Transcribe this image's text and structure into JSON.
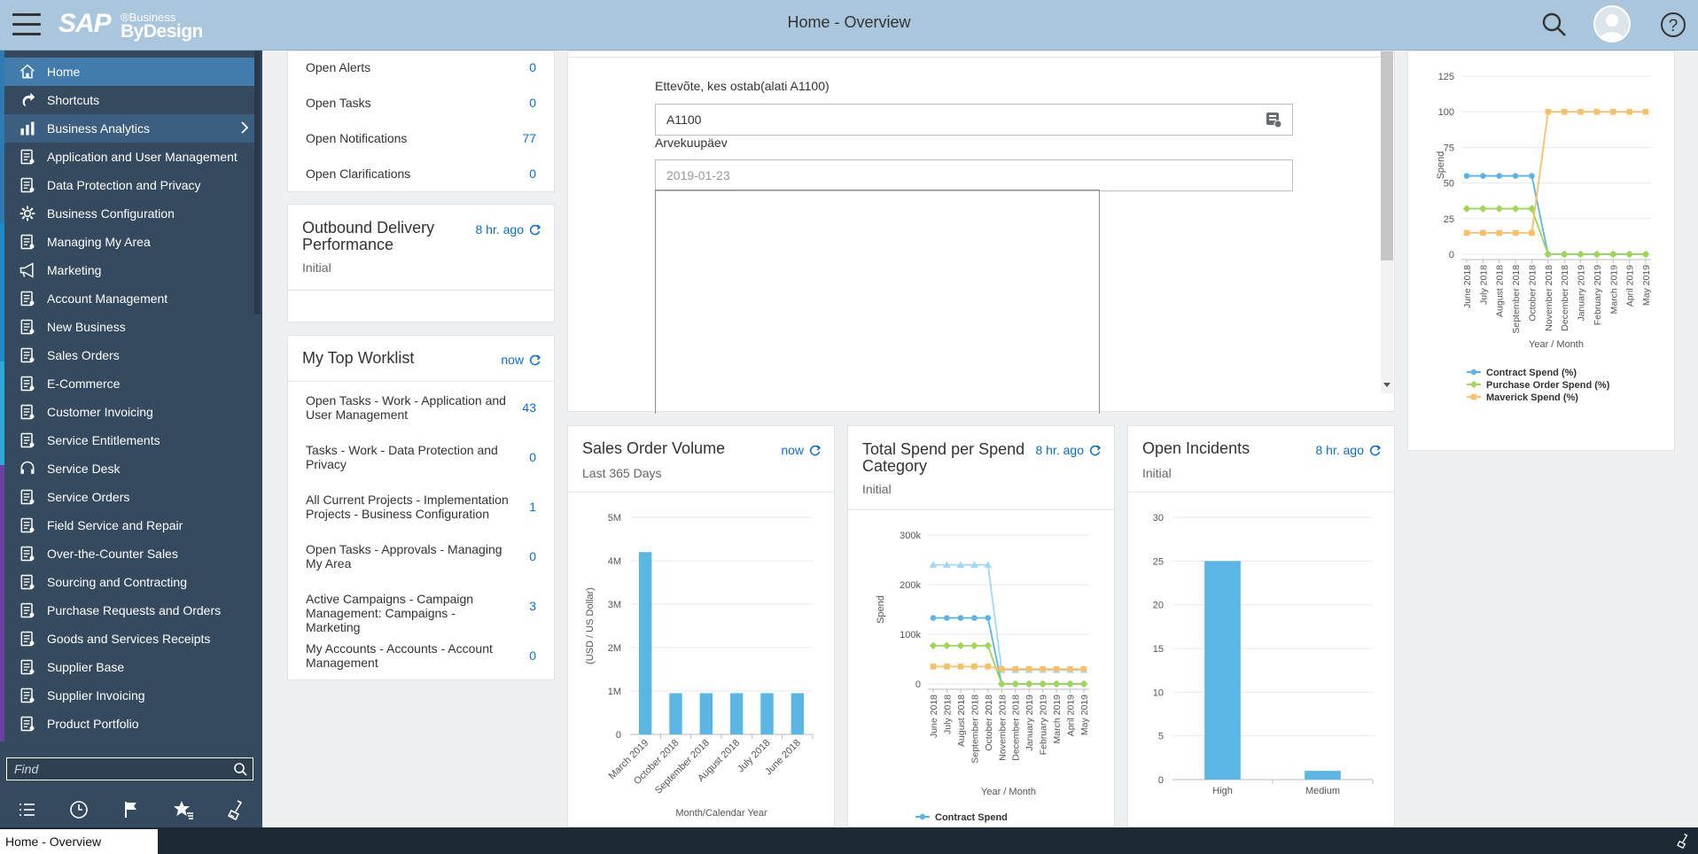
{
  "header": {
    "title": "Home - Overview"
  },
  "sidebar": {
    "items": [
      {
        "label": "Home",
        "icon": "home-icon",
        "state": "active"
      },
      {
        "label": "Shortcuts",
        "icon": "shortcut-icon"
      },
      {
        "label": "Business Analytics",
        "icon": "bar-chart-icon",
        "state": "hover",
        "has_children": true
      },
      {
        "label": "Application and User Management",
        "icon": "user-edit-icon"
      },
      {
        "label": "Data Protection and Privacy",
        "icon": "privacy-icon"
      },
      {
        "label": "Business Configuration",
        "icon": "gear-icon"
      },
      {
        "label": "Managing My Area",
        "icon": "org-icon"
      },
      {
        "label": "Marketing",
        "icon": "megaphone-icon"
      },
      {
        "label": "Account Management",
        "icon": "account-icon"
      },
      {
        "label": "New Business",
        "icon": "card-icon"
      },
      {
        "label": "Sales Orders",
        "icon": "sales-order-icon"
      },
      {
        "label": "E-Commerce",
        "icon": "ecommerce-icon"
      },
      {
        "label": "Customer Invoicing",
        "icon": "invoice-icon"
      },
      {
        "label": "Service Entitlements",
        "icon": "entitlement-icon"
      },
      {
        "label": "Service Desk",
        "icon": "headset-icon"
      },
      {
        "label": "Service Orders",
        "icon": "checklist-icon"
      },
      {
        "label": "Field Service and Repair",
        "icon": "car-icon"
      },
      {
        "label": "Over-the-Counter Sales",
        "icon": "counter-icon"
      },
      {
        "label": "Sourcing and Contracting",
        "icon": "sourcing-icon"
      },
      {
        "label": "Purchase Requests and Orders",
        "icon": "purchase-icon"
      },
      {
        "label": "Goods and Services Receipts",
        "icon": "receipt-icon"
      },
      {
        "label": "Supplier Base",
        "icon": "supplier-icon"
      },
      {
        "label": "Supplier Invoicing",
        "icon": "supplier-invoice-icon"
      },
      {
        "label": "Product Portfolio",
        "icon": "portfolio-icon"
      }
    ],
    "find_placeholder": "Find"
  },
  "alerts": {
    "rows": [
      {
        "label": "Open Alerts",
        "value": "0"
      },
      {
        "label": "Open Tasks",
        "value": "0"
      },
      {
        "label": "Open Notifications",
        "value": "77"
      },
      {
        "label": "Open Clarifications",
        "value": "0"
      }
    ]
  },
  "outbound": {
    "title": "Outbound Delivery Performance",
    "time": "8 hr. ago",
    "subtitle": "Initial"
  },
  "worklist": {
    "title": "My Top Worklist",
    "time": "now",
    "rows": [
      {
        "label": "Open Tasks - Work - Application and User Management",
        "value": "43"
      },
      {
        "label": "Tasks - Work - Data Protection and Privacy",
        "value": "0"
      },
      {
        "label": "All Current Projects - Implementation Projects - Business Configuration",
        "value": "1"
      },
      {
        "label": "Open Tasks - Approvals - Managing My Area",
        "value": "0"
      },
      {
        "label": "Active Campaigns - Campaign Management: Campaigns - Marketing",
        "value": "3"
      },
      {
        "label": "My Accounts - Accounts - Account Management",
        "value": "0"
      }
    ]
  },
  "form": {
    "company_label": "Ettevõte, kes ostab(alati A1100)",
    "company_value": "A1100",
    "date_label": "Arvekuupäev",
    "date_placeholder": "2019-01-23"
  },
  "sales_card": {
    "title": "Sales Order Volume",
    "subtitle": "Last 365 Days",
    "time": "now"
  },
  "spend_card": {
    "title": "Total Spend per Spend Category",
    "subtitle": "Initial",
    "time": "8 hr. ago"
  },
  "incidents_card": {
    "title": "Open Incidents",
    "subtitle": "Initial",
    "time": "8 hr. ago"
  },
  "chart_data": [
    {
      "id": "spend-percent",
      "type": "line",
      "xlabel": "Year / Month",
      "ylabel": "Spend",
      "ylim": [
        0,
        125
      ],
      "yticks": [
        "125",
        "100",
        "75",
        "50",
        "25",
        "0"
      ],
      "categories": [
        "June 2018",
        "July 2018",
        "August 2018",
        "September 2018",
        "October 2018",
        "November 2018",
        "December 2018",
        "January 2019",
        "February 2019",
        "March 2019",
        "April 2019",
        "May 2019"
      ],
      "series": [
        {
          "name": "Contract Spend (%)",
          "color": "#5cb3e6",
          "marker": "circle",
          "values": [
            55,
            55,
            55,
            55,
            55,
            0,
            0,
            0,
            0,
            0,
            0,
            0
          ]
        },
        {
          "name": "Purchase Order Spend (%)",
          "color": "#9fd655",
          "marker": "diamond",
          "values": [
            32,
            32,
            32,
            32,
            32,
            0,
            0,
            0,
            0,
            0,
            0,
            0
          ]
        },
        {
          "name": "Maverick Spend (%)",
          "color": "#f8c06a",
          "marker": "square",
          "values": [
            15,
            15,
            15,
            15,
            15,
            100,
            100,
            100,
            100,
            100,
            100,
            100
          ]
        }
      ],
      "legend": "bottom"
    },
    {
      "id": "sales-volume",
      "type": "bar",
      "xlabel": "Month/Calendar Year",
      "ylabel": "(USD / US Dollar)",
      "ylim": [
        0,
        5000000
      ],
      "yticks": [
        "5M",
        "4M",
        "3M",
        "2M",
        "1M",
        "0"
      ],
      "categories": [
        "March 2019",
        "October 2018",
        "September 2018",
        "August 2018",
        "July 2018",
        "June 2018"
      ],
      "values": [
        4200000,
        950000,
        950000,
        950000,
        950000,
        950000
      ],
      "color": "#5ab7e4"
    },
    {
      "id": "spend-category",
      "type": "line",
      "xlabel": "Year / Month",
      "ylabel": "Spend",
      "ylim": [
        0,
        300000
      ],
      "yticks": [
        "300k",
        "200k",
        "100k",
        "0"
      ],
      "categories": [
        "June 2018",
        "July 2018",
        "August 2018",
        "September 2018",
        "October 2018",
        "November 2018",
        "December 2018",
        "January 2019",
        "February 2019",
        "March 2019",
        "April 2019",
        "May 2019"
      ],
      "series": [
        {
          "name": "",
          "color": "#9fd8f5",
          "marker": "triangle",
          "values": [
            240000,
            240000,
            240000,
            240000,
            240000,
            28000,
            28000,
            28000,
            28000,
            28000,
            28000,
            28000
          ]
        },
        {
          "name": "Contract Spend",
          "color": "#5cb3e6",
          "marker": "circle",
          "values": [
            133000,
            133000,
            133000,
            133000,
            133000,
            0,
            0,
            0,
            0,
            0,
            0,
            0
          ]
        },
        {
          "name": "",
          "color": "#9fd655",
          "marker": "diamond",
          "values": [
            77000,
            77000,
            77000,
            77000,
            77000,
            0,
            0,
            0,
            0,
            0,
            0,
            0
          ]
        },
        {
          "name": "",
          "color": "#f8c06a",
          "marker": "square",
          "values": [
            35000,
            35000,
            35000,
            35000,
            35000,
            30000,
            30000,
            30000,
            30000,
            30000,
            30000,
            30000
          ]
        }
      ],
      "legend": "bottom"
    },
    {
      "id": "incidents",
      "type": "bar",
      "ylim": [
        0,
        30
      ],
      "yticks": [
        "30",
        "25",
        "20",
        "15",
        "10",
        "5",
        "0"
      ],
      "categories": [
        "High",
        "Medium"
      ],
      "values": [
        25,
        1
      ],
      "color": "#5ab7e4"
    }
  ],
  "status_bar": {
    "tab": "Home - Overview"
  }
}
